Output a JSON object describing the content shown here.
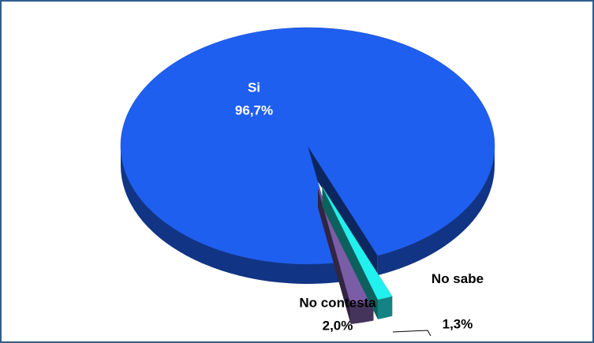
{
  "chart_data": {
    "type": "pie",
    "categories": [
      "Si",
      "No sabe",
      "No contesta"
    ],
    "values": [
      96.7,
      1.3,
      2.0
    ],
    "value_labels": [
      "96,7%",
      "1,3%",
      "2,0%"
    ],
    "colors": [
      "#1f5ff0",
      "#22f0ee",
      "#7b5ca6"
    ]
  }
}
